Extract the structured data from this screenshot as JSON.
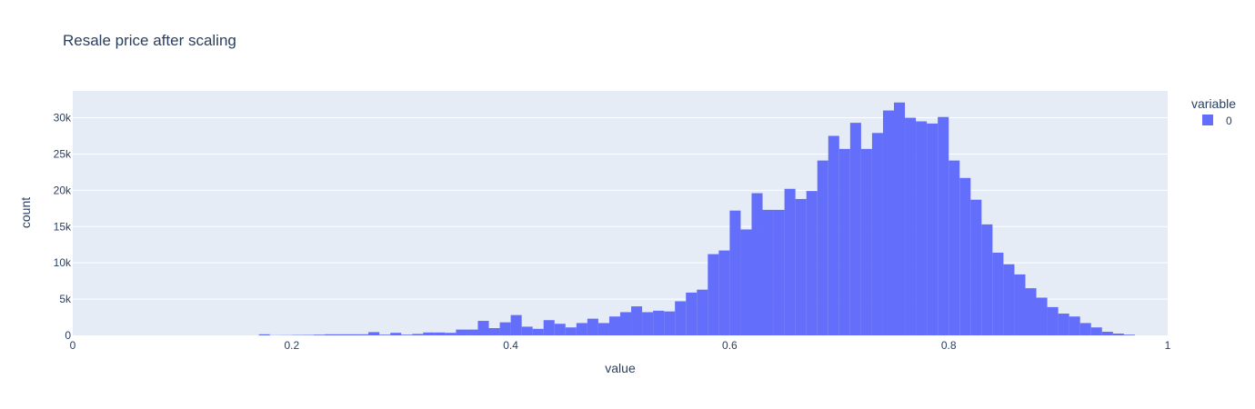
{
  "chart_data": {
    "type": "bar",
    "title": "Resale price after scaling",
    "xlabel": "value",
    "ylabel": "count",
    "xlim": [
      0,
      1
    ],
    "ylim": [
      0,
      33700
    ],
    "x_ticks": [
      0,
      0.2,
      0.4,
      0.6,
      0.8,
      1
    ],
    "x_tick_labels": [
      "0",
      "0.2",
      "0.4",
      "0.6",
      "0.8",
      "1"
    ],
    "y_ticks": [
      0,
      5000,
      10000,
      15000,
      20000,
      25000,
      30000
    ],
    "y_tick_labels": [
      "0",
      "5k",
      "10k",
      "15k",
      "20k",
      "25k",
      "30k"
    ],
    "bin_size": 0.01,
    "bin_starts": [
      0.17,
      0.18,
      0.19,
      0.2,
      0.21,
      0.22,
      0.23,
      0.24,
      0.25,
      0.26,
      0.27,
      0.28,
      0.29,
      0.3,
      0.31,
      0.32,
      0.33,
      0.34,
      0.35,
      0.36,
      0.37,
      0.38,
      0.39,
      0.4,
      0.41,
      0.42,
      0.43,
      0.44,
      0.45,
      0.46,
      0.47,
      0.48,
      0.49,
      0.5,
      0.51,
      0.52,
      0.53,
      0.54,
      0.55,
      0.56,
      0.57,
      0.58,
      0.59,
      0.6,
      0.61,
      0.62,
      0.63,
      0.64,
      0.65,
      0.66,
      0.67,
      0.68,
      0.69,
      0.7,
      0.71,
      0.72,
      0.73,
      0.74,
      0.75,
      0.76,
      0.77,
      0.78,
      0.79,
      0.8,
      0.81,
      0.82,
      0.83,
      0.84,
      0.85,
      0.86,
      0.87,
      0.88,
      0.89,
      0.9,
      0.91,
      0.92,
      0.93,
      0.94,
      0.95,
      0.96
    ],
    "series": [
      {
        "name": "0",
        "color": "#636efa",
        "values": [
          150,
          20,
          30,
          50,
          60,
          100,
          150,
          150,
          150,
          150,
          450,
          100,
          350,
          100,
          200,
          400,
          400,
          350,
          800,
          800,
          2000,
          1000,
          1800,
          2800,
          1200,
          900,
          2100,
          1600,
          1100,
          1700,
          2300,
          1700,
          2600,
          3200,
          4000,
          3200,
          3400,
          3300,
          4700,
          5900,
          6300,
          11200,
          11700,
          17200,
          14600,
          19600,
          17300,
          17300,
          20200,
          18800,
          19900,
          24100,
          27500,
          25700,
          29300,
          25700,
          27900,
          31000,
          32100,
          30000,
          29500,
          29200,
          30100,
          24100,
          21700,
          18700,
          15300,
          11400,
          9800,
          8400,
          6500,
          5200,
          3900,
          3000,
          2600,
          1700,
          1100,
          500,
          250,
          100
        ]
      }
    ],
    "legend": {
      "title": "variable",
      "entries": [
        "0"
      ],
      "placement": "right"
    },
    "grid": true,
    "plot_background": "#e5ecf6"
  }
}
